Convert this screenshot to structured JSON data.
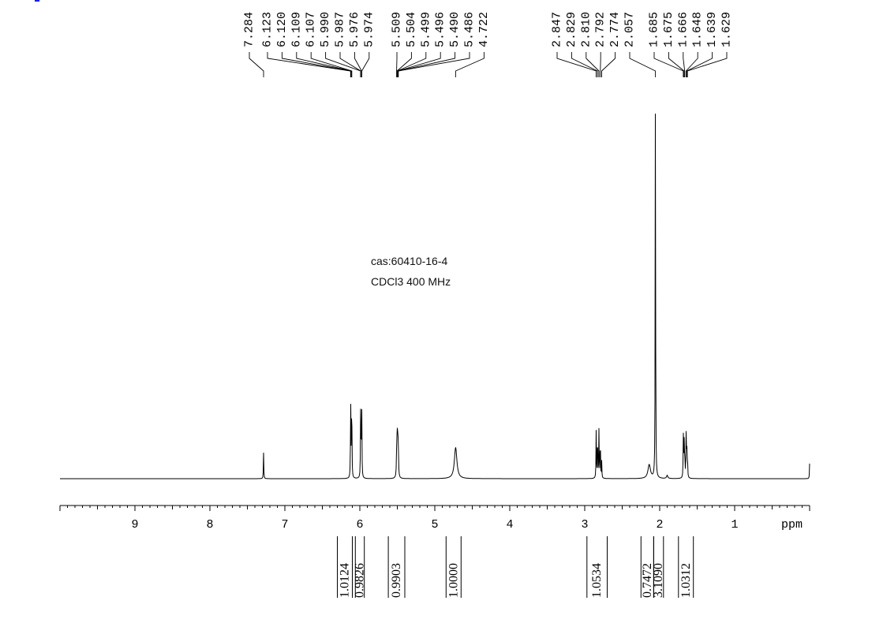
{
  "chart_data": {
    "type": "line",
    "title": "",
    "sample_id": "cas:60410-16-4",
    "solvent_freq": "CDCl3   400 MHz",
    "xlabel": "ppm",
    "xlim": [
      10.0,
      0.0
    ],
    "x_reversed": true,
    "x_ticks": [
      9,
      8,
      7,
      6,
      5,
      4,
      3,
      2,
      1
    ],
    "minor_tick_step": 0.1,
    "peak_labels": [
      "7.284",
      "6.123",
      "6.120",
      "6.109",
      "6.107",
      "5.990",
      "5.987",
      "5.976",
      "5.974",
      "5.509",
      "5.504",
      "5.499",
      "5.496",
      "5.490",
      "5.486",
      "4.722",
      "2.847",
      "2.829",
      "2.810",
      "2.792",
      "2.774",
      "2.057",
      "1.685",
      "1.675",
      "1.666",
      "1.648",
      "1.639",
      "1.629"
    ],
    "peaks": [
      {
        "ppm": 7.284,
        "height": 0.066,
        "width": 0.003
      },
      {
        "ppm": 6.123,
        "height": 0.115,
        "width": 0.003
      },
      {
        "ppm": 6.12,
        "height": 0.108,
        "width": 0.003
      },
      {
        "ppm": 6.109,
        "height": 0.115,
        "width": 0.003
      },
      {
        "ppm": 6.107,
        "height": 0.105,
        "width": 0.003
      },
      {
        "ppm": 5.99,
        "height": 0.105,
        "width": 0.003
      },
      {
        "ppm": 5.987,
        "height": 0.11,
        "width": 0.003
      },
      {
        "ppm": 5.976,
        "height": 0.1,
        "width": 0.003
      },
      {
        "ppm": 5.974,
        "height": 0.105,
        "width": 0.003
      },
      {
        "ppm": 5.509,
        "height": 0.05,
        "width": 0.004
      },
      {
        "ppm": 5.504,
        "height": 0.055,
        "width": 0.004
      },
      {
        "ppm": 5.499,
        "height": 0.058,
        "width": 0.004
      },
      {
        "ppm": 5.496,
        "height": 0.055,
        "width": 0.004
      },
      {
        "ppm": 5.49,
        "height": 0.05,
        "width": 0.004
      },
      {
        "ppm": 5.486,
        "height": 0.045,
        "width": 0.004
      },
      {
        "ppm": 4.722,
        "height": 0.079,
        "width": 0.02
      },
      {
        "ppm": 2.847,
        "height": 0.12,
        "width": 0.003
      },
      {
        "ppm": 2.829,
        "height": 0.124,
        "width": 0.003
      },
      {
        "ppm": 2.81,
        "height": 0.124,
        "width": 0.003
      },
      {
        "ppm": 2.792,
        "height": 0.113,
        "width": 0.003
      },
      {
        "ppm": 2.774,
        "height": 0.043,
        "width": 0.003
      },
      {
        "ppm": 2.057,
        "height": 1.0,
        "width": 0.003
      },
      {
        "ppm": 2.14,
        "height": 0.035,
        "width": 0.02
      },
      {
        "ppm": 1.9,
        "height": 0.008,
        "width": 0.01
      },
      {
        "ppm": 1.685,
        "height": 0.11,
        "width": 0.003
      },
      {
        "ppm": 1.675,
        "height": 0.102,
        "width": 0.003
      },
      {
        "ppm": 1.666,
        "height": 0.07,
        "width": 0.003
      },
      {
        "ppm": 1.648,
        "height": 0.108,
        "width": 0.003
      },
      {
        "ppm": 1.639,
        "height": 0.1,
        "width": 0.003
      },
      {
        "ppm": 1.629,
        "height": 0.055,
        "width": 0.003
      },
      {
        "ppm": 0.0,
        "height": 0.038,
        "width": 0.003
      }
    ],
    "integrals": [
      {
        "from": 6.3,
        "to": 6.1,
        "value": "1.0124"
      },
      {
        "from": 6.06,
        "to": 5.94,
        "value": "0.9826"
      },
      {
        "from": 5.62,
        "to": 5.4,
        "value": "0.9903"
      },
      {
        "from": 4.85,
        "to": 4.65,
        "value": "1.0000"
      },
      {
        "from": 2.97,
        "to": 2.7,
        "value": "1.0534"
      },
      {
        "from": 2.25,
        "to": 2.08,
        "value": "0.7472"
      },
      {
        "from": 2.08,
        "to": 1.95,
        "value": "3.1090"
      },
      {
        "from": 1.75,
        "to": 1.55,
        "value": "1.0312"
      }
    ]
  }
}
